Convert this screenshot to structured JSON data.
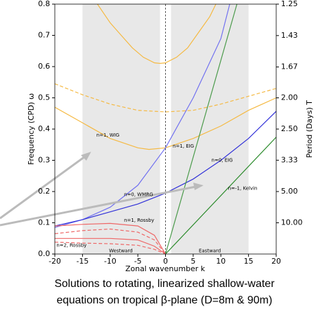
{
  "chart_data": {
    "type": "line",
    "xlabel": "Zonal wavenumber  k",
    "ylabel": "Frequency (CPD) ω",
    "y2label": "Period (Days) T",
    "y2scale": "reciprocal",
    "xlim": [
      -20,
      20
    ],
    "ylim": [
      0,
      0.8
    ],
    "xticks": [
      -20,
      -15,
      -10,
      -5,
      0,
      5,
      10,
      15,
      20
    ],
    "yticks": [
      {
        "value": 0,
        "label": "0.0"
      },
      0.1,
      0.2,
      0.3,
      0.4,
      0.5,
      0.6,
      0.7,
      0.8
    ],
    "y2ticks": [
      1.25,
      1.43,
      1.67,
      {
        "value": 2,
        "label": "2.00"
      },
      {
        "value": 2.5,
        "label": "2.50"
      },
      3.33,
      {
        "value": 5,
        "label": "5.00"
      },
      {
        "value": 10,
        "label": "10.00"
      }
    ],
    "shaded_regions": [
      [
        -15,
        -1
      ],
      [
        1,
        15
      ]
    ],
    "series": [
      {
        "color": "#f5b942",
        "dash": false,
        "x": [
          -12.3,
          -10,
          -8,
          -6,
          -4,
          -2,
          -1,
          0,
          2,
          4,
          6,
          8,
          9.1
        ],
        "values": [
          0.8,
          0.74,
          0.7,
          0.66,
          0.63,
          0.612,
          0.61,
          0.612,
          0.63,
          0.66,
          0.71,
          0.76,
          0.8
        ]
      },
      {
        "color": "#f5b942",
        "dash": true,
        "x": [
          -20,
          -15,
          -10,
          -5,
          0,
          5,
          10,
          15,
          20
        ],
        "values": [
          0.545,
          0.51,
          0.48,
          0.46,
          0.455,
          0.46,
          0.48,
          0.505,
          0.53
        ]
      },
      {
        "color": "#f5b942",
        "dash": false,
        "x": [
          -20,
          -15,
          -10,
          -5,
          -3,
          0,
          5,
          10,
          15,
          20
        ],
        "values": [
          0.47,
          0.42,
          0.37,
          0.34,
          0.335,
          0.34,
          0.37,
          0.41,
          0.46,
          0.5
        ]
      },
      {
        "color": "#7070f0",
        "dash": false,
        "x": [
          -20,
          -15,
          -10,
          -5,
          0,
          5,
          10,
          11.6
        ],
        "values": [
          0.085,
          0.11,
          0.15,
          0.22,
          0.34,
          0.5,
          0.69,
          0.8
        ]
      },
      {
        "color": "#3030d8",
        "dash": false,
        "x": [
          -20,
          -15,
          -10,
          -5,
          0,
          5,
          10,
          15,
          20
        ],
        "values": [
          0.09,
          0.11,
          0.135,
          0.16,
          0.195,
          0.24,
          0.3,
          0.37,
          0.457
        ]
      },
      {
        "color": "#4a9a4a",
        "dash": false,
        "x": [
          0,
          12.9
        ],
        "values": [
          0,
          0.8
        ]
      },
      {
        "color": "#2a8a2a",
        "dash": false,
        "x": [
          0,
          20
        ],
        "values": [
          0,
          0.374
        ]
      },
      {
        "color": "#ee6666",
        "dash": false,
        "x": [
          -20,
          -15,
          -10,
          -5,
          -2,
          0
        ],
        "values": [
          0.09,
          0.095,
          0.098,
          0.09,
          0.06,
          0
        ]
      },
      {
        "color": "#ee6666",
        "dash": true,
        "x": [
          -20,
          -15,
          -10,
          -5,
          -2,
          0
        ],
        "values": [
          0.065,
          0.075,
          0.08,
          0.07,
          0.045,
          0
        ]
      },
      {
        "color": "#ee6666",
        "dash": false,
        "x": [
          -20,
          -15,
          -10,
          -5,
          -2,
          0
        ],
        "values": [
          0.05,
          0.05,
          0.05,
          0.045,
          0.025,
          0
        ]
      },
      {
        "color": "#ee6666",
        "dash": true,
        "x": [
          -20,
          -15,
          -10,
          -5,
          -2,
          0
        ],
        "values": [
          0.038,
          0.035,
          0.033,
          0.028,
          0.015,
          0
        ]
      }
    ],
    "annotations": [
      {
        "text": "n=1, WIG",
        "x": -12.5,
        "y": 0.38,
        "color": "#f5b942"
      },
      {
        "text": "n=1, EIG",
        "x": 1.3,
        "y": 0.345,
        "color": "#f5b942"
      },
      {
        "text": "n=0, EIG",
        "x": 8.3,
        "y": 0.3,
        "color": "#7070f0"
      },
      {
        "text": "n=0, WMRG",
        "x": -7.5,
        "y": 0.19,
        "color": "#7070f0"
      },
      {
        "text": "n=-1, Kelvin",
        "x": 11.3,
        "y": 0.21,
        "color": "#4a9a4a"
      },
      {
        "text": "n=1, Rossby",
        "x": -7.5,
        "y": 0.108,
        "color": "#ee6666"
      },
      {
        "text": "n=2, Rossby",
        "x": -19.7,
        "y": 0.028,
        "color": "#ee6666"
      },
      {
        "text": "Westward",
        "x": -10.2,
        "y": 0.01,
        "color": "#555555"
      },
      {
        "text": "Eastward",
        "x": 6,
        "y": 0.01,
        "color": "#555555"
      }
    ]
  },
  "caption": [
    "Solutions to rotating, linearized shallow-water",
    "equations on tropical β-plane (D=8m & 90m)"
  ]
}
